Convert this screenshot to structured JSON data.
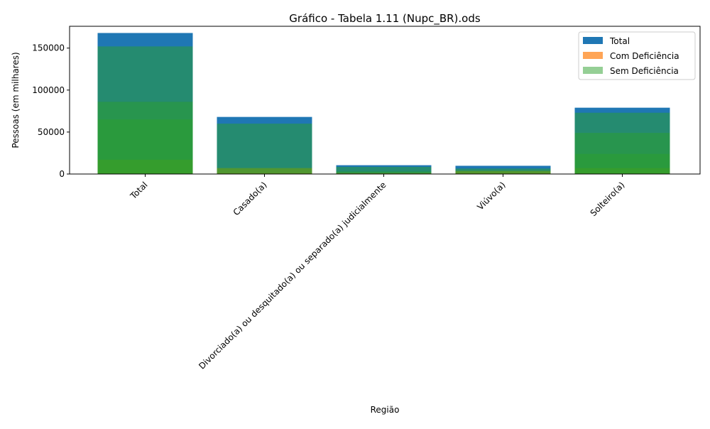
{
  "chart_data": {
    "type": "bar",
    "title": "Gráfico - Tabela 1.11 (Nupc_BR).ods",
    "xlabel": "Região",
    "ylabel": "Pessoas (em milhares)",
    "ylim": [
      0,
      176000
    ],
    "yticks": [
      0,
      50000,
      100000,
      150000
    ],
    "ytick_labels": [
      "0",
      "50000",
      "100000",
      "150000"
    ],
    "categories": [
      "Total",
      "Casado(a)",
      "Divorciado(a) ou desquitado(a) ou separado(a) judicialmente",
      "Viúvo(a)",
      "Solteiro(a)"
    ],
    "legend_position": "top-right",
    "series_groups": [
      {
        "name": "Total",
        "color": "#1f77b4",
        "opacity": 1.0,
        "values": [
          [
            168000,
            152000,
            86000,
            65000,
            17000
          ],
          [
            68000,
            60000,
            7000
          ],
          [
            10500,
            8500,
            3000
          ],
          [
            9800,
            6500,
            3800
          ],
          [
            79000,
            73000,
            49000,
            24000,
            7000
          ]
        ]
      },
      {
        "name": "Com Deficiência",
        "color": "#ff7f0e",
        "opacity": 0.7,
        "values": [
          [
            17000,
            2600,
            1600,
            900,
            500
          ],
          [
            7000,
            1100,
            700,
            300
          ],
          [
            1200,
            900,
            300
          ],
          [
            3800,
            1600,
            500
          ],
          [
            7000,
            1500,
            900,
            300
          ]
        ]
      },
      {
        "name": "Sem Deficiência",
        "color": "#2ca02c",
        "opacity": 0.5,
        "values": [
          [
            152000,
            86000,
            65000,
            17000
          ],
          [
            60000,
            7000
          ],
          [
            8500,
            3000
          ],
          [
            6500,
            3800
          ],
          [
            73000,
            49000,
            24000,
            7000
          ]
        ]
      }
    ]
  }
}
